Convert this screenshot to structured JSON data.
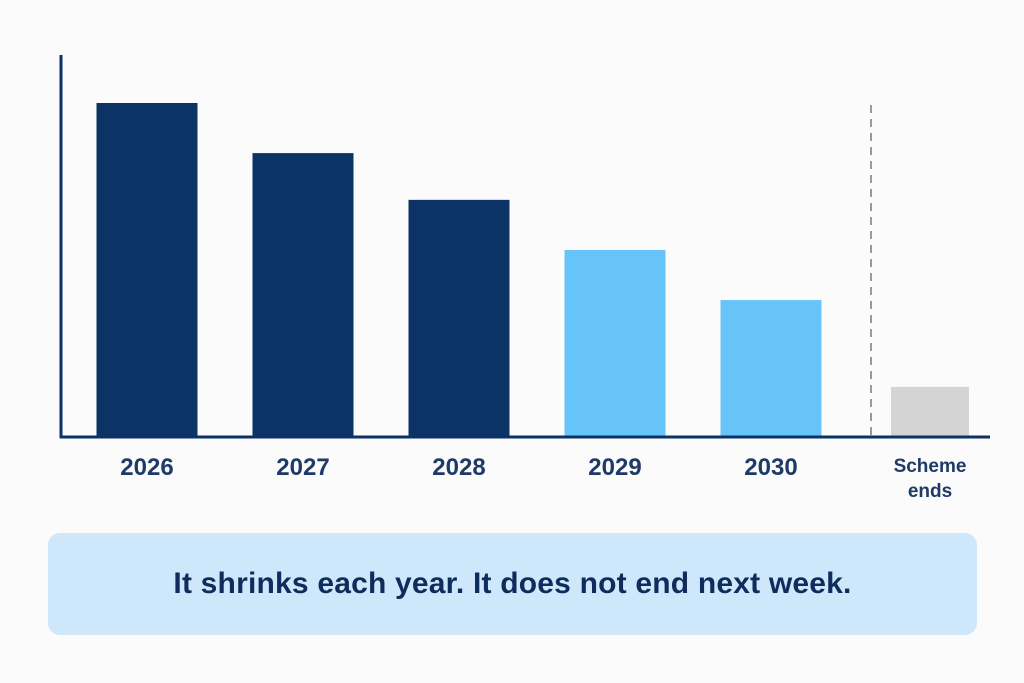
{
  "chart_data": {
    "type": "bar",
    "categories": [
      "2026",
      "2027",
      "2028",
      "2029",
      "2030",
      "Scheme ends"
    ],
    "category_lines": [
      [
        "2026"
      ],
      [
        "2027"
      ],
      [
        "2028"
      ],
      [
        "2029"
      ],
      [
        "2030"
      ],
      [
        "Scheme",
        "ends"
      ]
    ],
    "values": [
      100,
      85,
      71,
      56,
      41,
      15
    ],
    "ylim": [
      0,
      100
    ],
    "title": "",
    "xlabel": "",
    "ylabel": "",
    "grid": false,
    "bar_colors": [
      "#0b3366",
      "#0b3366",
      "#0b3366",
      "#66c4f8",
      "#66c4f8",
      "#d4d4d4"
    ],
    "divider_before_last": true,
    "divider_style": "dashed"
  },
  "caption": {
    "text": "It shrinks each year. It does not end next week."
  },
  "colors": {
    "axis": "#0b3366",
    "divider": "#9a9a9a",
    "caption_bg": "#cfe7fb",
    "caption_text": "#0f2d5c",
    "tick_text": "#1f3a66"
  }
}
